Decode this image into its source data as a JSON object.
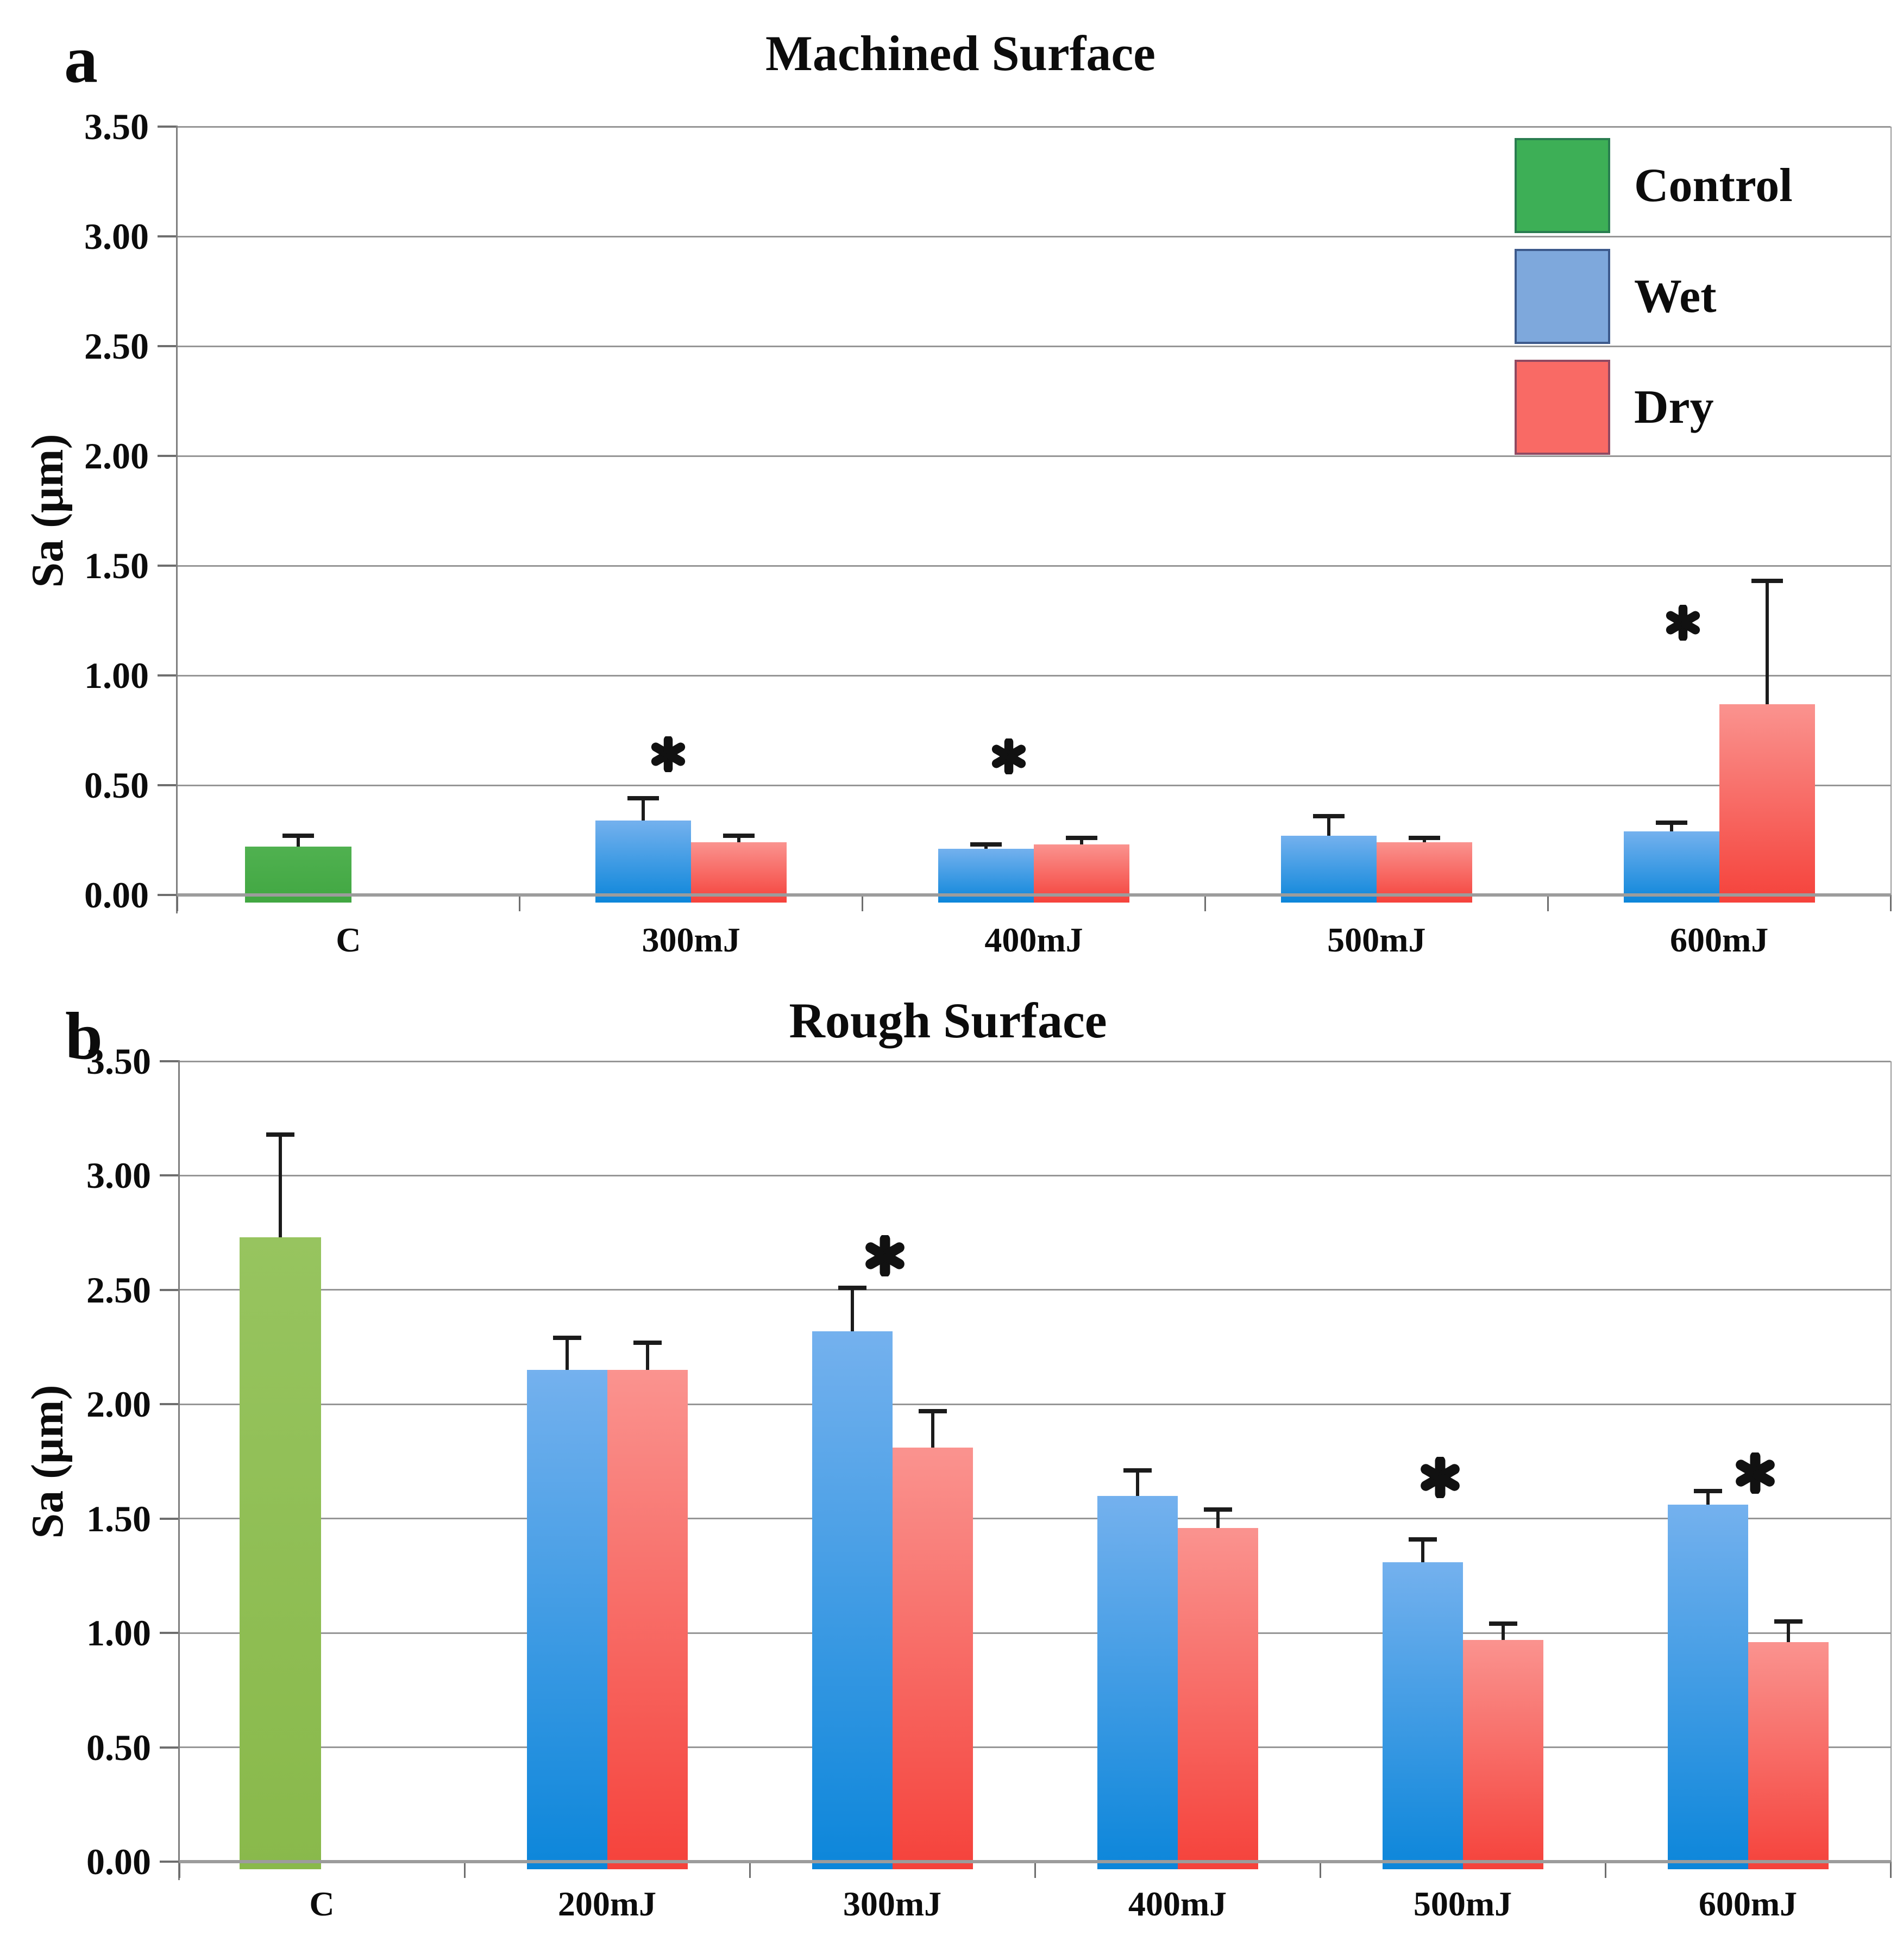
{
  "figure": {
    "background": "#ffffff",
    "gridline_color": "#969696",
    "axis_text_color": "#0c0c0c",
    "error_bar_color": "#1b1b1b",
    "asterisk_color": "#111111"
  },
  "panels": [
    {
      "label": "a",
      "title": "Machined Surface",
      "ylabel": "Sa (μm)"
    },
    {
      "label": "b",
      "title": "Rough Surface",
      "ylabel": "Sa (μm)"
    }
  ],
  "legend": {
    "position": "top-right-of-panel-a",
    "items": [
      {
        "label": "Control",
        "fill": "#3daf56",
        "border": "#2a7d50"
      },
      {
        "label": "Wet",
        "fill": "#7ea8dc",
        "border": "#3d5a8c"
      },
      {
        "label": "Dry",
        "fill": "#f96a65",
        "border": "#8f4a62"
      }
    ]
  },
  "chart_data": [
    {
      "type": "bar",
      "title": "Machined Surface",
      "xlabel": "",
      "ylabel": "Sa (μm)",
      "ylim": [
        0,
        3.5
      ],
      "ytick_step": 0.5,
      "ytick_labels": [
        "3.50",
        "3.00",
        "2.50",
        "2.00",
        "1.50",
        "1.00",
        "0.50",
        "0.00"
      ],
      "grid": true,
      "legend_position": "top-right",
      "categories": [
        "C",
        "300mJ",
        "400mJ",
        "500mJ",
        "600mJ"
      ],
      "series": [
        {
          "name": "Control",
          "values": [
            0.22,
            null,
            null,
            null,
            null
          ],
          "errors_up": [
            0.05,
            null,
            null,
            null,
            null
          ],
          "color_top": "#50b150",
          "color_bottom": "#41a742"
        },
        {
          "name": "Wet",
          "values": [
            null,
            0.34,
            0.21,
            0.27,
            0.29
          ],
          "errors_up": [
            null,
            0.1,
            0.02,
            0.09,
            0.04
          ],
          "color_top": "#74b1ee",
          "color_bottom": "#0c86da"
        },
        {
          "name": "Dry",
          "values": [
            null,
            0.24,
            0.23,
            0.24,
            0.87
          ],
          "errors_up": [
            null,
            0.03,
            0.03,
            0.02,
            0.56
          ],
          "color_top": "#fa938f",
          "color_bottom": "#f5423b"
        }
      ],
      "annotations": [
        {
          "text": "*",
          "category": "300mJ",
          "dx": -0.24,
          "y": 0.64
        },
        {
          "text": "*",
          "category": "400mJ",
          "dx": -0.26,
          "y": 0.63
        },
        {
          "text": "*",
          "category": "600mJ",
          "dx": -0.38,
          "y": 1.24
        }
      ]
    },
    {
      "type": "bar",
      "title": "Rough Surface",
      "xlabel": "",
      "ylabel": "Sa (μm)",
      "ylim": [
        0,
        3.5
      ],
      "ytick_step": 0.5,
      "ytick_labels": [
        "3.50",
        "3.00",
        "2.50",
        "2.00",
        "1.50",
        "1.00",
        "0.50",
        "0.00"
      ],
      "grid": true,
      "legend_position": "none",
      "categories": [
        "C",
        "200mJ",
        "300mJ",
        "400mJ",
        "500mJ",
        "600mJ"
      ],
      "series": [
        {
          "name": "Control",
          "values": [
            2.73,
            null,
            null,
            null,
            null,
            null
          ],
          "errors_up": [
            0.45,
            null,
            null,
            null,
            null,
            null
          ],
          "color_top": "#97c45f",
          "color_bottom": "#89b94b"
        },
        {
          "name": "Wet",
          "values": [
            null,
            2.15,
            2.32,
            1.6,
            1.31,
            1.56
          ],
          "errors_up": [
            null,
            0.14,
            0.19,
            0.11,
            0.1,
            0.06
          ],
          "color_top": "#74b1ee",
          "color_bottom": "#0c86da"
        },
        {
          "name": "Dry",
          "values": [
            null,
            2.15,
            1.81,
            1.46,
            0.97,
            0.96
          ],
          "errors_up": [
            null,
            0.12,
            0.16,
            0.08,
            0.07,
            0.09
          ],
          "color_top": "#fa938f",
          "color_bottom": "#f5423b"
        }
      ],
      "annotations": [
        {
          "text": "*",
          "category": "300mJ",
          "dx": -0.09,
          "y": 2.65
        },
        {
          "text": "*",
          "category": "500mJ",
          "dx": -0.28,
          "y": 1.68
        },
        {
          "text": "*",
          "category": "600mJ",
          "dx": 0.09,
          "y": 1.7
        }
      ]
    }
  ]
}
